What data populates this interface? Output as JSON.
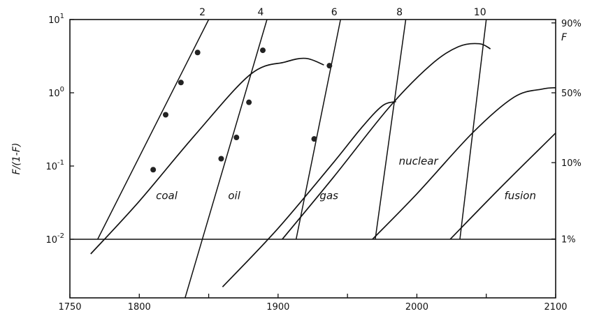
{
  "chart_data": {
    "type": "line",
    "title": "",
    "xlabel": "",
    "ylabel": "F/(1-F)",
    "y2label": "F",
    "xlim": [
      1750,
      2100
    ],
    "ylim_log10": [
      -2.8,
      1.0
    ],
    "log_scale_y": true,
    "grid": false,
    "x_ticks": [
      {
        "value": 1750,
        "label": "1750"
      },
      {
        "value": 1800,
        "label": "1800"
      },
      {
        "value": 1850,
        "label": ""
      },
      {
        "value": 1900,
        "label": "1900"
      },
      {
        "value": 1950,
        "label": ""
      },
      {
        "value": 2000,
        "label": "2000"
      },
      {
        "value": 2050,
        "label": ""
      },
      {
        "value": 2100,
        "label": "2100"
      }
    ],
    "y_ticks": [
      {
        "log10": 1,
        "base": "10",
        "exp": "1"
      },
      {
        "log10": 0,
        "base": "10",
        "exp": "0"
      },
      {
        "log10": -1,
        "base": "10",
        "exp": "-1"
      },
      {
        "log10": -2,
        "base": "10",
        "exp": "-2"
      }
    ],
    "y2_ticks": [
      {
        "log10": 0.954,
        "label": "90%"
      },
      {
        "log10": 0,
        "label": "50%"
      },
      {
        "log10": -0.954,
        "label": "10%"
      },
      {
        "log10": -1.996,
        "label": "1%"
      }
    ],
    "reference_line_log10": -2,
    "series": [
      {
        "name": "coal",
        "label_pos": {
          "x": 1812,
          "log10": -1.45
        },
        "points": [
          [
            1765,
            -2.2
          ],
          [
            1800,
            -1.48
          ],
          [
            1840,
            -0.58
          ],
          [
            1880,
            0.25
          ],
          [
            1905,
            0.42
          ],
          [
            1920,
            0.47
          ],
          [
            1933,
            0.38
          ]
        ]
      },
      {
        "name": "oil",
        "label_pos": {
          "x": 1864,
          "log10": -1.45
        },
        "points": [
          [
            1860,
            -2.65
          ],
          [
            1900,
            -1.85
          ],
          [
            1940,
            -0.95
          ],
          [
            1960,
            -0.48
          ],
          [
            1975,
            -0.18
          ],
          [
            1985,
            -0.12
          ]
        ]
      },
      {
        "name": "gas",
        "label_pos": {
          "x": 1930,
          "log10": -1.45
        },
        "points": [
          [
            1903,
            -2.0
          ],
          [
            1940,
            -1.15
          ],
          [
            1980,
            -0.2
          ],
          [
            2010,
            0.38
          ],
          [
            2030,
            0.63
          ],
          [
            2045,
            0.67
          ],
          [
            2053,
            0.6
          ]
        ]
      },
      {
        "name": "nuclear",
        "label_pos": {
          "x": 1987,
          "log10": -0.98
        },
        "points": [
          [
            1968,
            -2.0
          ],
          [
            2000,
            -1.38
          ],
          [
            2040,
            -0.55
          ],
          [
            2070,
            -0.06
          ],
          [
            2090,
            0.05
          ],
          [
            2100,
            0.07
          ]
        ]
      },
      {
        "name": "fusion",
        "label_pos": {
          "x": 2063,
          "log10": -1.45
        },
        "points": [
          [
            2024,
            -2.0
          ],
          [
            2060,
            -1.3
          ],
          [
            2100,
            -0.55
          ]
        ]
      }
    ],
    "trend_lines": [
      {
        "label": "2",
        "points": [
          [
            1770,
            -2.0
          ],
          [
            1850,
            1.0
          ]
        ]
      },
      {
        "label": "4",
        "points": [
          [
            1833,
            -2.8
          ],
          [
            1892,
            1.0
          ]
        ]
      },
      {
        "label": "6",
        "points": [
          [
            1913,
            -2.0
          ],
          [
            1945,
            1.0
          ]
        ]
      },
      {
        "label": "8",
        "points": [
          [
            1970,
            -2.0
          ],
          [
            1992,
            1.0
          ]
        ]
      },
      {
        "label": "10",
        "points": [
          [
            2031,
            -2.0
          ],
          [
            2050,
            1.0
          ]
        ]
      }
    ],
    "data_points": [
      [
        1810,
        -1.05
      ],
      [
        1819,
        -0.3
      ],
      [
        1830,
        0.14
      ],
      [
        1842,
        0.55
      ],
      [
        1859,
        -0.9
      ],
      [
        1870,
        -0.61
      ],
      [
        1879,
        -0.13
      ],
      [
        1889,
        0.58
      ],
      [
        1926,
        -0.63
      ],
      [
        1937,
        0.37
      ]
    ]
  }
}
